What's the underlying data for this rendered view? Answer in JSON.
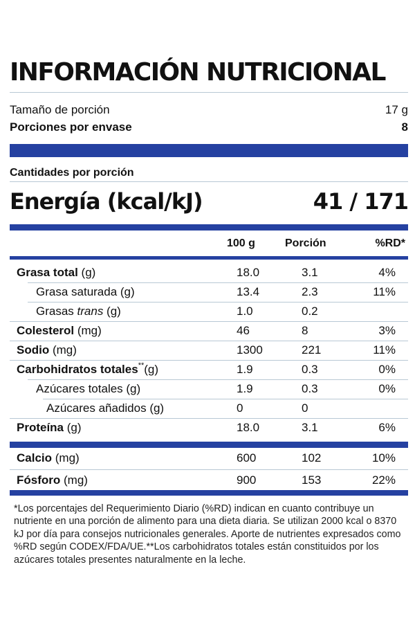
{
  "title": "INFORMACIÓN NUTRICIONAL",
  "serving": {
    "size_label": "Tamaño de porción",
    "size_value": "17 g",
    "count_label": "Porciones por envase",
    "count_value": "8"
  },
  "amounts_label": "Cantidades por porción",
  "energy": {
    "label": "Energía  (kcal/kJ)",
    "value": "41 / 171"
  },
  "columns": {
    "per100": "100 g",
    "portion": "Porción",
    "rd": "%RD*"
  },
  "rows": [
    {
      "bold": "Grasa total",
      "rest": " (g)",
      "per100": "18.0",
      "portion": "3.1",
      "rd": "4%"
    },
    {
      "bold": "",
      "rest": "Grasa saturada (g)",
      "per100": "13.4",
      "portion": "2.3",
      "rd": "11%"
    },
    {
      "bold": "",
      "rest_pre": "Grasas ",
      "rest_italic": "trans",
      "rest": " (g)",
      "per100": "1.0",
      "portion": "0.2",
      "rd": ""
    },
    {
      "bold": "Colesterol",
      "rest": " (mg)",
      "per100": "46",
      "portion": "8",
      "rd": "3%"
    },
    {
      "bold": "Sodio",
      "rest": " (mg)",
      "per100": "1300",
      "portion": "221",
      "rd": "11%"
    },
    {
      "bold": "Carbohidratos totales",
      "sup": "**",
      "rest": "(g)",
      "per100": "1.9",
      "portion": "0.3",
      "rd": "0%"
    },
    {
      "bold": "",
      "rest": "Azúcares totales (g)",
      "per100": "1.9",
      "portion": "0.3",
      "rd": "0%"
    },
    {
      "bold": "",
      "rest": "Azúcares añadidos (g)",
      "per100": "0",
      "portion": "0",
      "rd": ""
    },
    {
      "bold": "Proteína",
      "rest": " (g)",
      "per100": "18.0",
      "portion": "3.1",
      "rd": "6%"
    }
  ],
  "minerals": [
    {
      "bold": "Calcio",
      "rest": " (mg)",
      "per100": "600",
      "portion": "102",
      "rd": "10%"
    },
    {
      "bold": "Fósforo",
      "rest": " (mg)",
      "per100": "900",
      "portion": "153",
      "rd": "22%"
    }
  ],
  "footnote": "*Los porcentajes del Requerimiento Diario (%RD) indican en cuanto contribuye un nutriente en una porción de alimento para una dieta diaria. Se utilizan 2000 kcal o 8370 kJ por día para consejos nutricionales generales. Aporte de nutrientes expresados como %RD según CODEX/FDA/UE.**Los carbohidratos totales están constituidos por los azúcares totales presentes naturalmente en la leche.",
  "colors": {
    "band": "#2541a1",
    "rule": "#b8c8d4",
    "text": "#111111"
  }
}
